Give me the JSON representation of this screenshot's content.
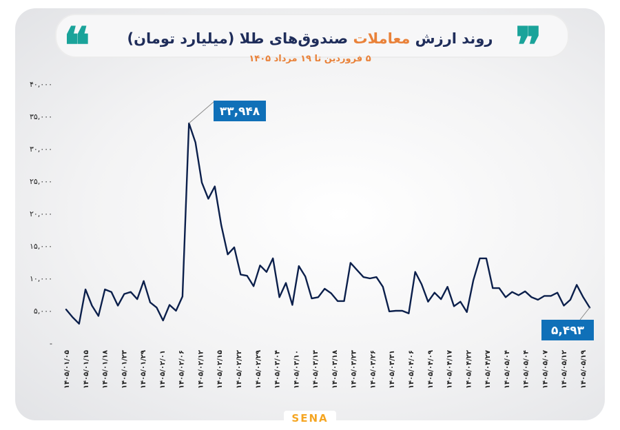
{
  "header": {
    "title_part1": "روند ارزش ",
    "title_accent": "معاملات",
    "title_part2": " صندوق‌های طلا (میلیارد تومان)",
    "subtitle": "۵ فروردین تا ۱۹ مرداد ۱۴۰۵",
    "left_quote": "❝",
    "right_quote": "❞"
  },
  "logo": {
    "text": "SENA"
  },
  "colors": {
    "line": "#0b1f4b",
    "callout": "#1070b8",
    "accent": "#e9823a",
    "quote": "#1aa39a"
  },
  "chart_data": {
    "type": "line",
    "title": "روند ارزش معاملات صندوق‌های طلا (میلیارد تومان)",
    "subtitle": "۵ فروردین تا ۱۹ مرداد ۱۴۰۵",
    "ylim": [
      0,
      40000
    ],
    "y_ticks": [
      "۴۰,۰۰۰",
      "۳۵,۰۰۰",
      "۳۰,۰۰۰",
      "۲۵,۰۰۰",
      "۲۰,۰۰۰",
      "۱۵,۰۰۰",
      "۱۰,۰۰۰",
      "۵,۰۰۰",
      "-"
    ],
    "y_tick_values": [
      40000,
      35000,
      30000,
      25000,
      20000,
      15000,
      10000,
      5000,
      0
    ],
    "x_tick_labels": [
      "۱۴۰۵/۰۱/۰۵",
      "۱۴۰۵/۰۱/۱۵",
      "۱۴۰۵/۰۱/۱۸",
      "۱۴۰۵/۰۱/۲۳",
      "۱۴۰۵/۰۱/۲۹",
      "۱۴۰۵/۰۲/۰۱",
      "۱۴۰۵/۰۲/۰۶",
      "۱۴۰۵/۰۲/۱۲",
      "۱۴۰۵/۰۲/۱۵",
      "۱۴۰۵/۰۲/۲۲",
      "۱۴۰۵/۰۲/۲۹",
      "۱۴۰۵/۰۳/۰۴",
      "۱۴۰۵/۰۳/۱۰",
      "۱۴۰۵/۰۳/۱۳",
      "۱۴۰۵/۰۳/۱۸",
      "۱۴۰۵/۰۳/۲۳",
      "۱۴۰۵/۰۳/۲۶",
      "۱۴۰۵/۰۳/۳۱",
      "۱۴۰۵/۰۴/۰۶",
      "۱۴۰۵/۰۴/۰۹",
      "۱۴۰۵/۰۴/۱۷",
      "۱۴۰۵/۰۴/۲۲",
      "۱۴۰۵/۰۴/۲۷",
      "۱۴۰۵/۰۵/۰۴",
      "۱۴۰۵/۰۵/۰۴",
      "۱۴۰۵/۰۵/۰۷",
      "۱۴۰۵/۰۵/۱۲",
      "۱۴۰۵/۰۵/۱۹"
    ],
    "values": [
      5200,
      4000,
      3000,
      8300,
      5800,
      4200,
      8300,
      7900,
      5800,
      7600,
      7900,
      6800,
      9600,
      6300,
      5500,
      3500,
      5900,
      5000,
      7200,
      33948,
      31000,
      24800,
      22300,
      24200,
      18200,
      13700,
      14800,
      10600,
      10400,
      8800,
      12000,
      11000,
      13100,
      7100,
      9300,
      5900,
      11900,
      10300,
      6900,
      7100,
      8400,
      7700,
      6500,
      6500,
      12400,
      11300,
      10200,
      10000,
      10200,
      8700,
      4900,
      5000,
      5000,
      4600,
      11000,
      9100,
      6400,
      7800,
      6800,
      8700,
      5700,
      6400,
      4800,
      9700,
      13100,
      13100,
      8500,
      8500,
      7100,
      7900,
      7400,
      8000,
      7100,
      6700,
      7300,
      7300,
      7800,
      5800,
      6700,
      9000,
      7100,
      5493
    ],
    "annotations": [
      {
        "label": "۳۳,۹۴۸",
        "value": 33948,
        "at": "max"
      },
      {
        "label": "۵,۴۹۳",
        "value": 5493,
        "at": "last"
      }
    ]
  }
}
